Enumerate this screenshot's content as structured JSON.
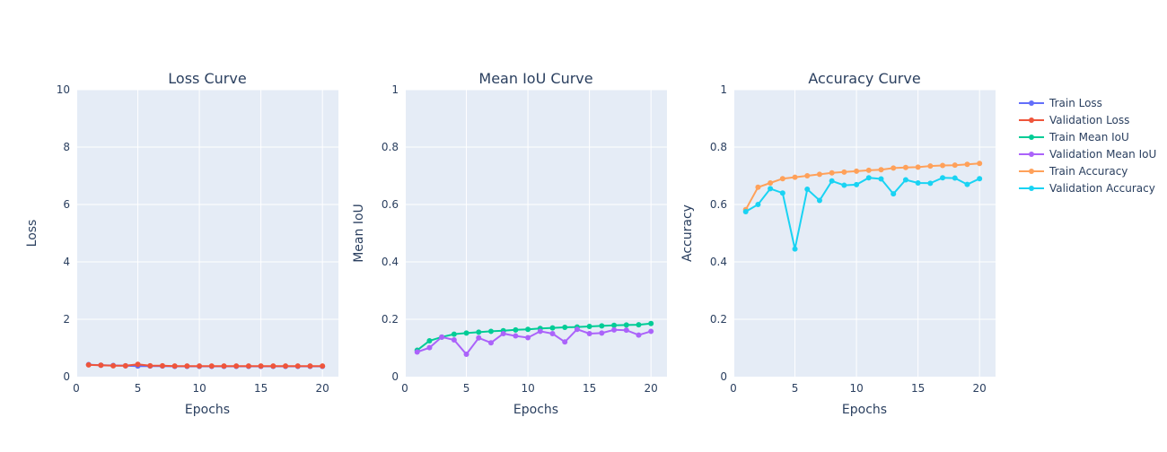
{
  "chart_data": [
    {
      "type": "line",
      "title": "Loss Curve",
      "xlabel": "Epochs",
      "ylabel": "Loss",
      "xlim": [
        0,
        21.3
      ],
      "ylim": [
        0,
        10
      ],
      "xticks": [
        0,
        5,
        10,
        15,
        20
      ],
      "yticks": [
        0,
        2,
        4,
        6,
        8,
        10
      ],
      "x": [
        1,
        2,
        3,
        4,
        5,
        6,
        7,
        8,
        9,
        10,
        11,
        12,
        13,
        14,
        15,
        16,
        17,
        18,
        19,
        20
      ],
      "series": [
        {
          "name": "Train Loss",
          "color": "#636efa",
          "values": [
            0.42,
            0.4,
            0.39,
            0.38,
            0.37,
            0.37,
            0.37,
            0.36,
            0.36,
            0.36,
            0.36,
            0.36,
            0.36,
            0.36,
            0.36,
            0.36,
            0.36,
            0.36,
            0.36,
            0.36
          ]
        },
        {
          "name": "Validation Loss",
          "color": "#ef553b",
          "values": [
            0.41,
            0.4,
            0.38,
            0.38,
            0.43,
            0.38,
            0.38,
            0.37,
            0.37,
            0.37,
            0.37,
            0.37,
            0.37,
            0.37,
            0.37,
            0.37,
            0.37,
            0.37,
            0.37,
            0.37
          ]
        }
      ]
    },
    {
      "type": "line",
      "title": "Mean IoU Curve",
      "xlabel": "Epochs",
      "ylabel": "Mean IoU",
      "xlim": [
        0,
        21.3
      ],
      "ylim": [
        0,
        1
      ],
      "xticks": [
        0,
        5,
        10,
        15,
        20
      ],
      "yticks": [
        0,
        0.2,
        0.4,
        0.6,
        0.8,
        1
      ],
      "x": [
        1,
        2,
        3,
        4,
        5,
        6,
        7,
        8,
        9,
        10,
        11,
        12,
        13,
        14,
        15,
        16,
        17,
        18,
        19,
        20
      ],
      "series": [
        {
          "name": "Train Mean IoU",
          "color": "#00cc96",
          "values": [
            0.092,
            0.125,
            0.138,
            0.148,
            0.152,
            0.155,
            0.158,
            0.16,
            0.163,
            0.165,
            0.168,
            0.17,
            0.172,
            0.173,
            0.175,
            0.177,
            0.179,
            0.18,
            0.181,
            0.185
          ]
        },
        {
          "name": "Validation Mean IoU",
          "color": "#ab63fa",
          "values": [
            0.086,
            0.101,
            0.138,
            0.128,
            0.078,
            0.135,
            0.118,
            0.15,
            0.142,
            0.136,
            0.158,
            0.15,
            0.121,
            0.165,
            0.15,
            0.152,
            0.163,
            0.162,
            0.145,
            0.158
          ]
        }
      ]
    },
    {
      "type": "line",
      "title": "Accuracy Curve",
      "xlabel": "Epochs",
      "ylabel": "Accuracy",
      "xlim": [
        0,
        21.3
      ],
      "ylim": [
        0,
        1
      ],
      "xticks": [
        0,
        5,
        10,
        15,
        20
      ],
      "yticks": [
        0,
        0.2,
        0.4,
        0.6,
        0.8,
        1
      ],
      "x": [
        1,
        2,
        3,
        4,
        5,
        6,
        7,
        8,
        9,
        10,
        11,
        12,
        13,
        14,
        15,
        16,
        17,
        18,
        19,
        20
      ],
      "series": [
        {
          "name": "Train Accuracy",
          "color": "#ffa15a",
          "values": [
            0.582,
            0.66,
            0.675,
            0.69,
            0.695,
            0.7,
            0.705,
            0.71,
            0.713,
            0.716,
            0.719,
            0.721,
            0.727,
            0.729,
            0.73,
            0.734,
            0.736,
            0.737,
            0.74,
            0.743
          ]
        },
        {
          "name": "Validation Accuracy",
          "color": "#19d3f3",
          "values": [
            0.575,
            0.6,
            0.655,
            0.64,
            0.445,
            0.653,
            0.614,
            0.682,
            0.667,
            0.669,
            0.693,
            0.689,
            0.637,
            0.686,
            0.675,
            0.674,
            0.693,
            0.692,
            0.67,
            0.69
          ]
        }
      ]
    }
  ],
  "legend": {
    "placement": "right",
    "items": [
      {
        "label": "Train Loss",
        "color": "#636efa"
      },
      {
        "label": "Validation Loss",
        "color": "#ef553b"
      },
      {
        "label": "Train Mean IoU",
        "color": "#00cc96"
      },
      {
        "label": "Validation Mean IoU",
        "color": "#ab63fa"
      },
      {
        "label": "Train Accuracy",
        "color": "#ffa15a"
      },
      {
        "label": "Validation Accuracy",
        "color": "#19d3f3"
      }
    ]
  }
}
